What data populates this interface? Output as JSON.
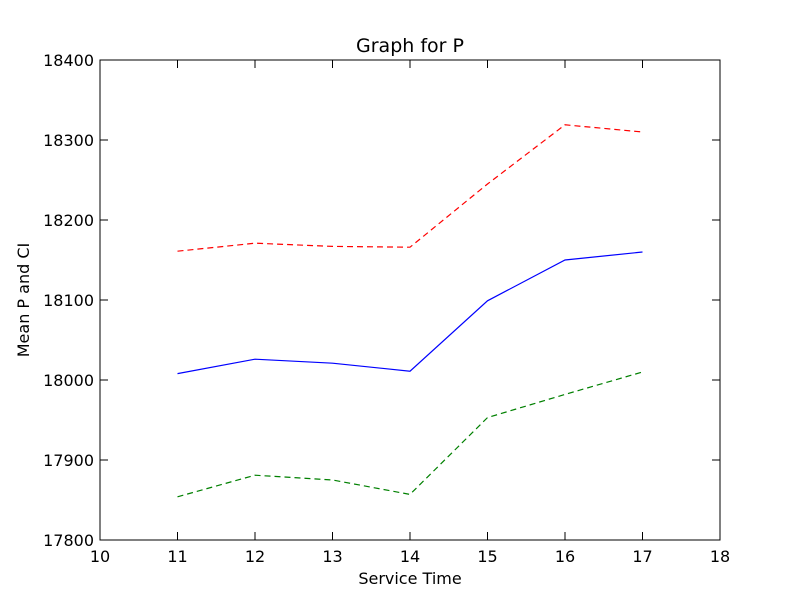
{
  "chart_data": {
    "type": "line",
    "title": "Graph for P",
    "xlabel": "Service Time",
    "ylabel": "Mean P and CI",
    "xlim": [
      10,
      18
    ],
    "ylim": [
      17800,
      18400
    ],
    "xticks": [
      "10",
      "11",
      "12",
      "13",
      "14",
      "15",
      "16",
      "17",
      "18"
    ],
    "yticks": [
      "17800",
      "17900",
      "18000",
      "18100",
      "18200",
      "18300",
      "18400"
    ],
    "x": [
      11,
      12,
      13,
      14,
      15,
      16,
      17
    ],
    "series": [
      {
        "values": [
          18161,
          18171,
          18167,
          18166,
          18245,
          18319,
          18310
        ],
        "color": "#ff0000",
        "style": "dashed"
      },
      {
        "values": [
          18008,
          18026,
          18021,
          18011,
          18099,
          18150,
          18160
        ],
        "color": "#0000ff",
        "style": "solid"
      },
      {
        "values": [
          17854,
          17881,
          17875,
          17857,
          17953,
          17982,
          18010
        ],
        "color": "#008000",
        "style": "dashed"
      }
    ],
    "grid": false,
    "legend": "none"
  }
}
